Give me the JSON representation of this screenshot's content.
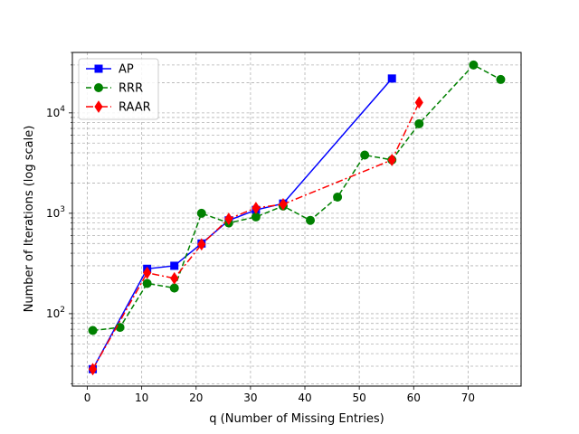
{
  "chart_data": {
    "type": "line",
    "title": "",
    "xlabel": "q (Number of Missing Entries)",
    "ylabel": "Number of Iterations (log scale)",
    "xlim": [
      -2.75,
      79.75
    ],
    "ylim": [
      19,
      40000
    ],
    "yscale": "log",
    "grid": "both (major and minor), dashed",
    "x_ticks": [
      0,
      10,
      20,
      30,
      40,
      50,
      60,
      70
    ],
    "y_ticks": [
      {
        "value": 100,
        "base": "10",
        "exp": "2"
      },
      {
        "value": 1000,
        "base": "10",
        "exp": "3"
      },
      {
        "value": 10000,
        "base": "10",
        "exp": "4"
      }
    ],
    "legend_position": "top-left",
    "series": [
      {
        "name": "AP",
        "color": "#0000ff",
        "linestyle": "solid",
        "marker": "square",
        "x": [
          1,
          11,
          16,
          21,
          26,
          31,
          36,
          56
        ],
        "y": [
          28,
          280,
          300,
          500,
          850,
          1080,
          1250,
          22000
        ]
      },
      {
        "name": "RRR",
        "color": "#008000",
        "linestyle": "dashed",
        "marker": "circle",
        "x": [
          1,
          6,
          11,
          16,
          21,
          26,
          31,
          36,
          41,
          46,
          51,
          56,
          61,
          71,
          76
        ],
        "y": [
          68,
          73,
          200,
          180,
          1000,
          800,
          920,
          1180,
          850,
          1450,
          3800,
          3400,
          7800,
          30000,
          21500
        ]
      },
      {
        "name": "RAAR",
        "color": "#ff0000",
        "linestyle": "dashdot",
        "marker": "diamond",
        "x": [
          1,
          11,
          16,
          21,
          26,
          31,
          36,
          56,
          61
        ],
        "y": [
          28,
          255,
          225,
          490,
          880,
          1130,
          1230,
          3400,
          12700
        ]
      }
    ]
  }
}
